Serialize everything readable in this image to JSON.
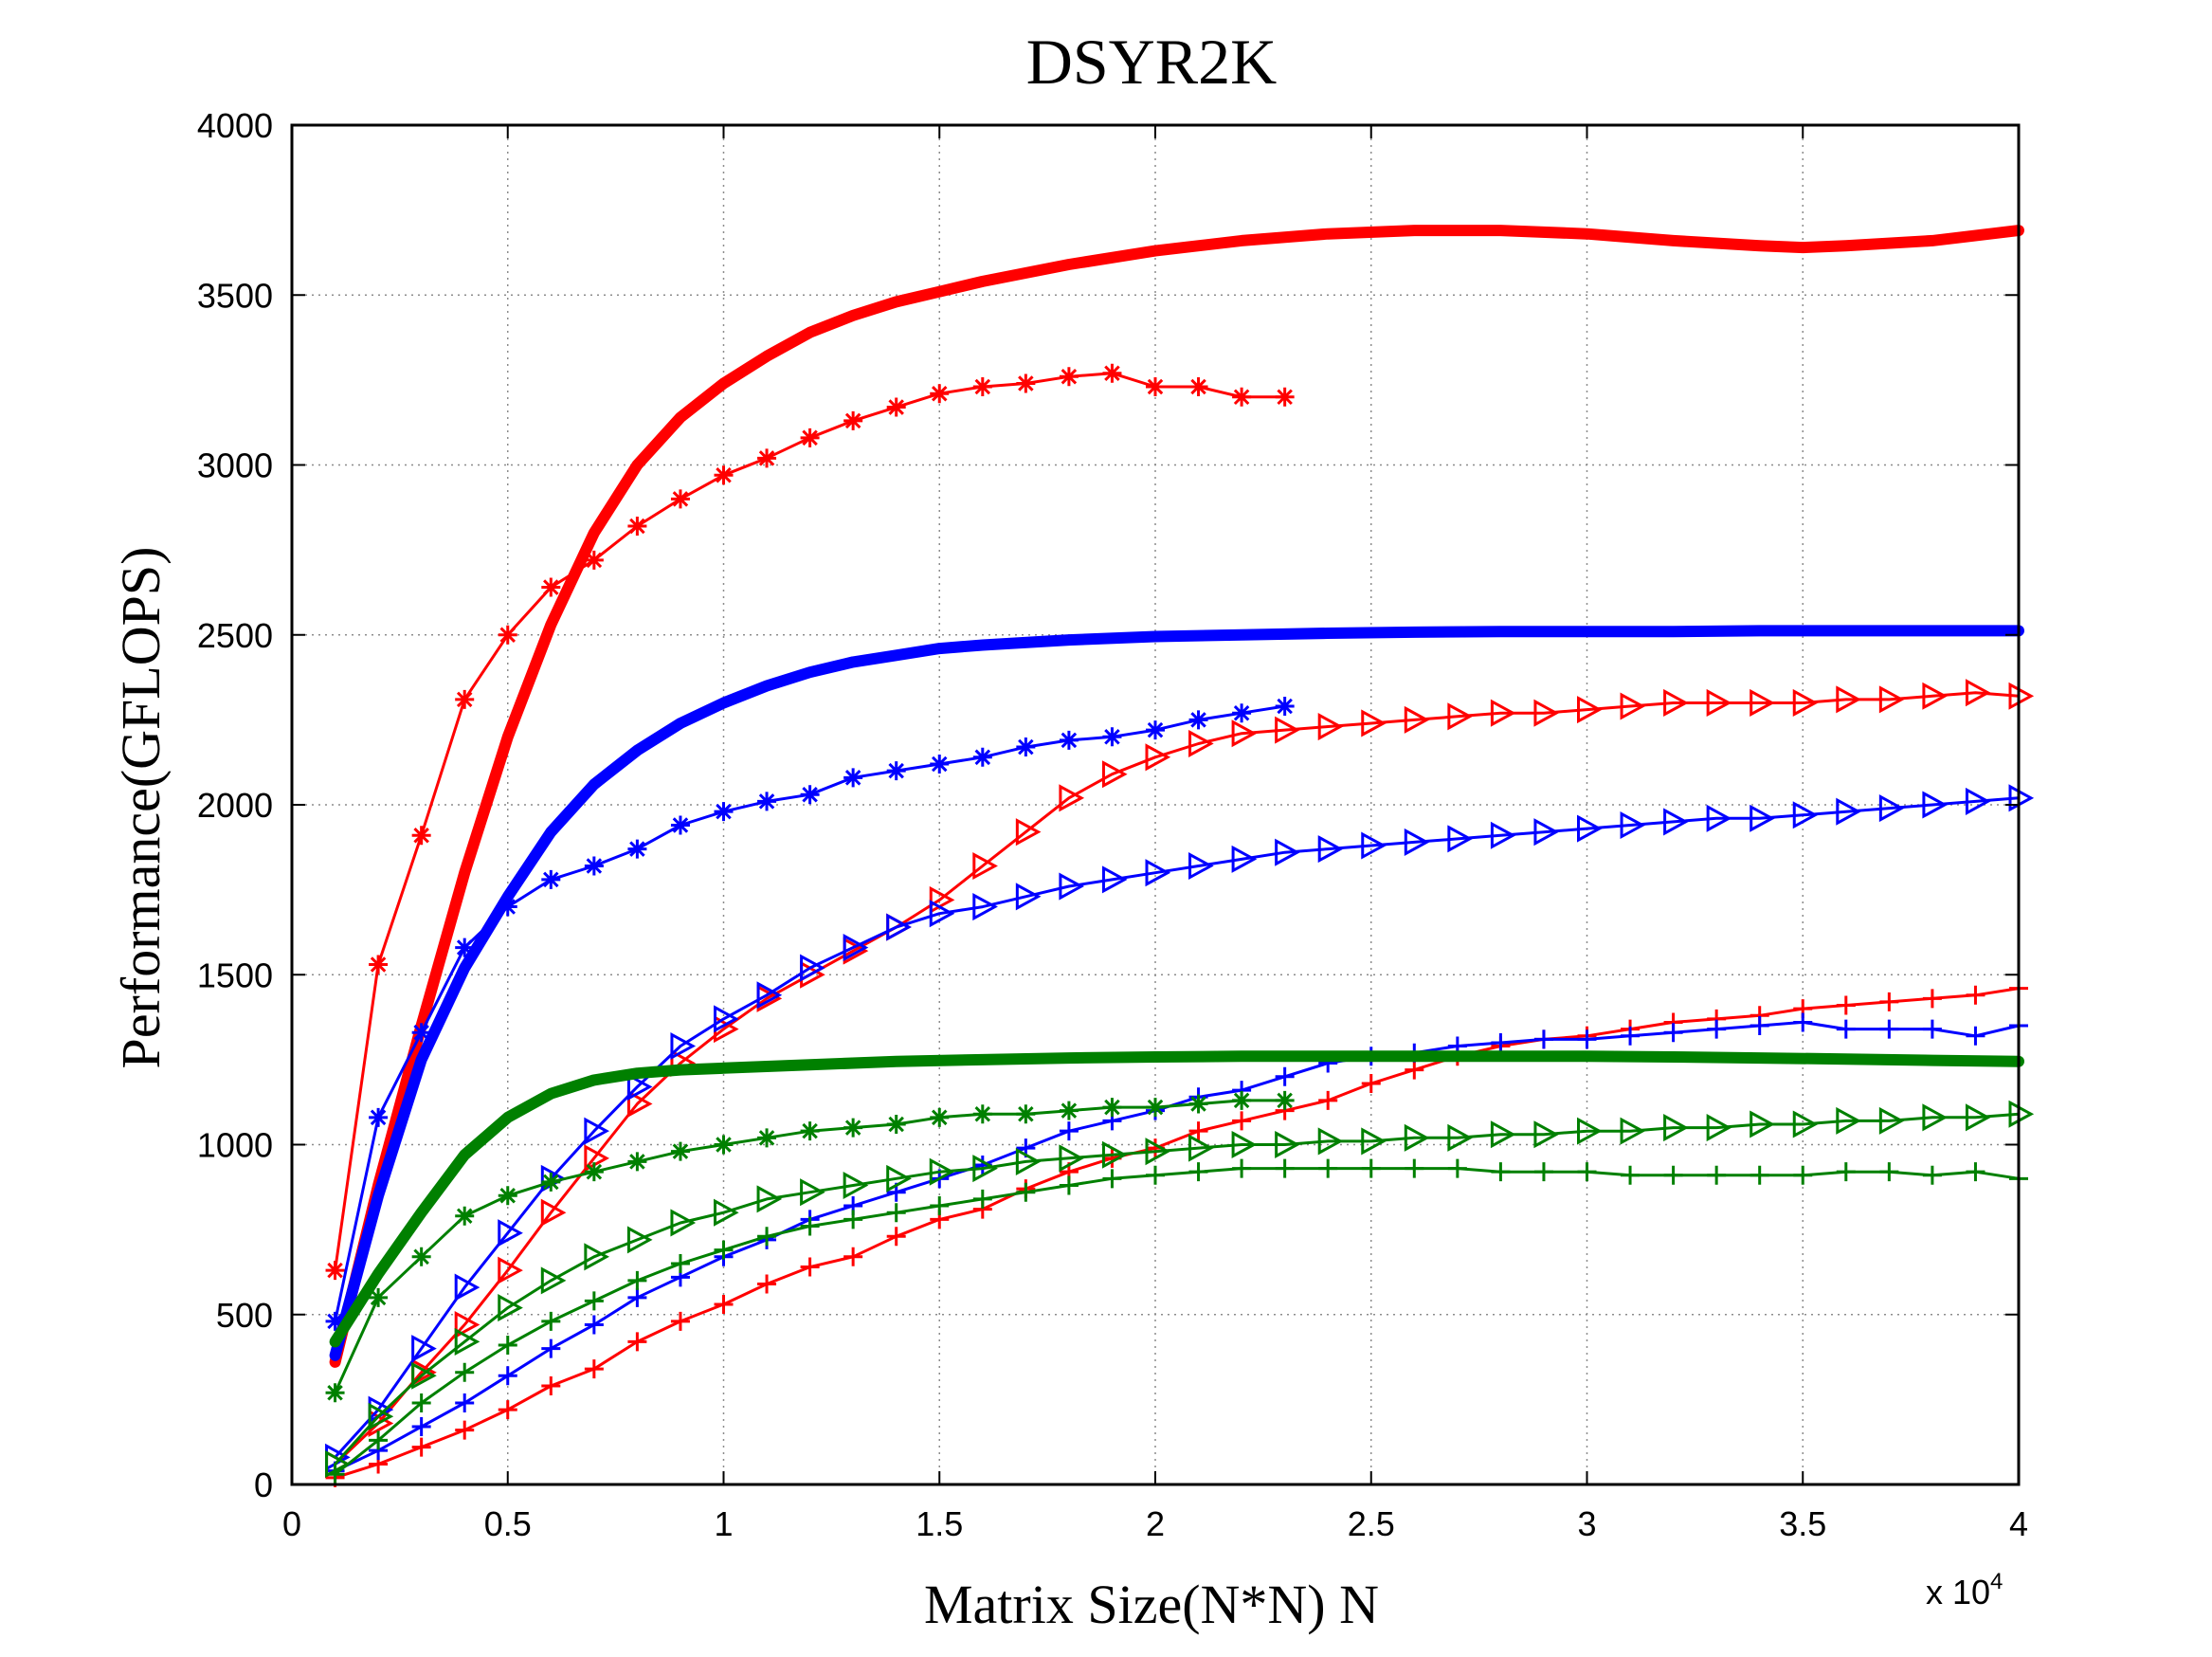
{
  "chart_data": {
    "type": "line",
    "title": "DSYR2K",
    "xlabel": "Matrix Size(N*N) N",
    "ylabel": "Performance(GFLOPS)",
    "x_multiplier_label": "x 10",
    "x_multiplier_exponent": "4",
    "xlim": [
      0,
      4
    ],
    "ylim": [
      0,
      4000
    ],
    "xticks": [
      0,
      0.5,
      1,
      1.5,
      2,
      2.5,
      3,
      3.5,
      4
    ],
    "xtick_labels": [
      "0",
      "0.5",
      "1",
      "1.5",
      "2",
      "2.5",
      "3",
      "3.5",
      "4"
    ],
    "yticks": [
      0,
      500,
      1000,
      1500,
      2000,
      2500,
      3000,
      3500,
      4000
    ],
    "ytick_labels": [
      "0",
      "500",
      "1000",
      "1500",
      "2000",
      "2500",
      "3000",
      "3500",
      "4000"
    ],
    "grid": true,
    "colors": {
      "red": "#ff0000",
      "blue": "#0000ff",
      "green": "#008000",
      "axis": "#000000",
      "grid": "#8c8c8c"
    },
    "series": [
      {
        "name": "red-thick",
        "color": "red",
        "marker": "none",
        "width": "thick",
        "x": [
          0.1,
          0.2,
          0.3,
          0.4,
          0.5,
          0.6,
          0.7,
          0.8,
          0.9,
          1.0,
          1.1,
          1.2,
          1.3,
          1.4,
          1.5,
          1.6,
          1.8,
          2.0,
          2.2,
          2.4,
          2.6,
          2.8,
          3.0,
          3.2,
          3.4,
          3.5,
          3.6,
          3.8,
          4.0
        ],
        "y": [
          360,
          880,
          1350,
          1800,
          2200,
          2530,
          2800,
          3000,
          3140,
          3240,
          3320,
          3390,
          3440,
          3480,
          3510,
          3540,
          3590,
          3630,
          3660,
          3680,
          3690,
          3690,
          3680,
          3660,
          3645,
          3640,
          3645,
          3660,
          3690
        ]
      },
      {
        "name": "red-star",
        "color": "red",
        "marker": "star",
        "width": "thin",
        "x": [
          0.1,
          0.2,
          0.3,
          0.4,
          0.5,
          0.6,
          0.7,
          0.8,
          0.9,
          1.0,
          1.1,
          1.2,
          1.3,
          1.4,
          1.5,
          1.6,
          1.7,
          1.8,
          1.9,
          2.0,
          2.1,
          2.2,
          2.3
        ],
        "y": [
          630,
          1530,
          1910,
          2310,
          2500,
          2640,
          2720,
          2820,
          2900,
          2970,
          3020,
          3080,
          3130,
          3170,
          3210,
          3230,
          3240,
          3260,
          3270,
          3230,
          3230,
          3200,
          3200
        ]
      },
      {
        "name": "red-triangle",
        "color": "red",
        "marker": "triangle",
        "width": "thin",
        "x": [
          0.1,
          0.2,
          0.3,
          0.4,
          0.5,
          0.6,
          0.7,
          0.8,
          0.9,
          1.0,
          1.1,
          1.2,
          1.3,
          1.4,
          1.5,
          1.6,
          1.7,
          1.8,
          1.9,
          2.0,
          2.1,
          2.2,
          2.3,
          2.4,
          2.5,
          2.6,
          2.7,
          2.8,
          2.9,
          3.0,
          3.1,
          3.2,
          3.3,
          3.4,
          3.5,
          3.6,
          3.7,
          3.8,
          3.9,
          4.0
        ],
        "y": [
          60,
          180,
          330,
          470,
          630,
          800,
          960,
          1120,
          1240,
          1340,
          1430,
          1500,
          1570,
          1640,
          1720,
          1820,
          1920,
          2020,
          2090,
          2140,
          2180,
          2210,
          2220,
          2230,
          2240,
          2250,
          2260,
          2270,
          2270,
          2280,
          2290,
          2300,
          2300,
          2300,
          2300,
          2310,
          2310,
          2320,
          2330,
          2320
        ]
      },
      {
        "name": "red-plus",
        "color": "red",
        "marker": "plus",
        "width": "thin",
        "x": [
          0.1,
          0.2,
          0.3,
          0.4,
          0.5,
          0.6,
          0.7,
          0.8,
          0.9,
          1.0,
          1.1,
          1.2,
          1.3,
          1.4,
          1.5,
          1.6,
          1.7,
          1.8,
          1.9,
          2.0,
          2.1,
          2.2,
          2.3,
          2.4,
          2.5,
          2.6,
          2.7,
          2.8,
          2.9,
          3.0,
          3.1,
          3.2,
          3.3,
          3.4,
          3.5,
          3.6,
          3.7,
          3.8,
          3.9,
          4.0
        ],
        "y": [
          20,
          60,
          110,
          160,
          220,
          290,
          340,
          420,
          480,
          530,
          590,
          640,
          670,
          730,
          780,
          810,
          870,
          920,
          960,
          990,
          1040,
          1070,
          1100,
          1130,
          1180,
          1220,
          1260,
          1290,
          1310,
          1320,
          1340,
          1360,
          1370,
          1380,
          1400,
          1410,
          1420,
          1430,
          1440,
          1460
        ]
      },
      {
        "name": "blue-thick",
        "color": "blue",
        "marker": "none",
        "width": "thick",
        "x": [
          0.1,
          0.2,
          0.3,
          0.4,
          0.5,
          0.6,
          0.7,
          0.8,
          0.9,
          1.0,
          1.1,
          1.2,
          1.3,
          1.4,
          1.5,
          1.6,
          1.8,
          2.0,
          2.2,
          2.4,
          2.6,
          2.8,
          3.0,
          3.2,
          3.4,
          3.6,
          3.8,
          4.0
        ],
        "y": [
          380,
          850,
          1250,
          1520,
          1730,
          1920,
          2060,
          2160,
          2240,
          2300,
          2350,
          2390,
          2420,
          2440,
          2460,
          2470,
          2485,
          2495,
          2500,
          2505,
          2508,
          2510,
          2510,
          2510,
          2512,
          2512,
          2512,
          2512
        ]
      },
      {
        "name": "blue-star",
        "color": "blue",
        "marker": "star",
        "width": "thin",
        "x": [
          0.1,
          0.2,
          0.3,
          0.4,
          0.5,
          0.6,
          0.7,
          0.8,
          0.9,
          1.0,
          1.1,
          1.2,
          1.3,
          1.4,
          1.5,
          1.6,
          1.7,
          1.8,
          1.9,
          2.0,
          2.1,
          2.2,
          2.3
        ],
        "y": [
          480,
          1080,
          1330,
          1580,
          1700,
          1780,
          1820,
          1870,
          1940,
          1980,
          2010,
          2030,
          2080,
          2100,
          2120,
          2140,
          2170,
          2190,
          2200,
          2220,
          2250,
          2270,
          2290
        ]
      },
      {
        "name": "blue-triangle",
        "color": "blue",
        "marker": "triangle",
        "width": "thin",
        "x": [
          0.1,
          0.2,
          0.3,
          0.4,
          0.5,
          0.6,
          0.7,
          0.8,
          0.9,
          1.0,
          1.1,
          1.2,
          1.3,
          1.4,
          1.5,
          1.6,
          1.7,
          1.8,
          1.9,
          2.0,
          2.1,
          2.2,
          2.3,
          2.4,
          2.5,
          2.6,
          2.7,
          2.8,
          2.9,
          3.0,
          3.1,
          3.2,
          3.3,
          3.4,
          3.5,
          3.6,
          3.7,
          3.8,
          3.9,
          4.0
        ],
        "y": [
          80,
          220,
          400,
          580,
          740,
          900,
          1040,
          1170,
          1290,
          1370,
          1440,
          1520,
          1580,
          1640,
          1680,
          1700,
          1730,
          1760,
          1780,
          1800,
          1820,
          1840,
          1860,
          1870,
          1880,
          1890,
          1900,
          1910,
          1920,
          1930,
          1940,
          1950,
          1960,
          1960,
          1970,
          1980,
          1990,
          2000,
          2010,
          2020
        ]
      },
      {
        "name": "blue-plus",
        "color": "blue",
        "marker": "plus",
        "width": "thin",
        "x": [
          0.1,
          0.2,
          0.3,
          0.4,
          0.5,
          0.6,
          0.7,
          0.8,
          0.9,
          1.0,
          1.1,
          1.2,
          1.3,
          1.4,
          1.5,
          1.6,
          1.7,
          1.8,
          1.9,
          2.0,
          2.1,
          2.2,
          2.3,
          2.4,
          2.5,
          2.6,
          2.7,
          2.8,
          2.9,
          3.0,
          3.1,
          3.2,
          3.3,
          3.4,
          3.5,
          3.6,
          3.7,
          3.8,
          3.9,
          4.0
        ],
        "y": [
          40,
          100,
          170,
          240,
          320,
          400,
          470,
          550,
          610,
          670,
          720,
          780,
          820,
          860,
          900,
          940,
          990,
          1040,
          1070,
          1100,
          1140,
          1160,
          1200,
          1240,
          1260,
          1270,
          1290,
          1300,
          1310,
          1310,
          1320,
          1330,
          1340,
          1350,
          1360,
          1340,
          1340,
          1340,
          1320,
          1350
        ]
      },
      {
        "name": "green-thick",
        "color": "green",
        "marker": "none",
        "width": "thick",
        "x": [
          0.1,
          0.2,
          0.3,
          0.4,
          0.5,
          0.6,
          0.7,
          0.8,
          0.9,
          1.0,
          1.2,
          1.4,
          1.6,
          1.8,
          2.0,
          2.2,
          2.4,
          2.6,
          2.8,
          3.0,
          3.2,
          3.4,
          3.6,
          3.8,
          4.0
        ],
        "y": [
          420,
          620,
          800,
          970,
          1080,
          1150,
          1190,
          1210,
          1220,
          1225,
          1235,
          1245,
          1250,
          1255,
          1258,
          1260,
          1260,
          1260,
          1260,
          1260,
          1258,
          1255,
          1252,
          1248,
          1245
        ]
      },
      {
        "name": "green-star",
        "color": "green",
        "marker": "star",
        "width": "thin",
        "x": [
          0.1,
          0.2,
          0.3,
          0.4,
          0.5,
          0.6,
          0.7,
          0.8,
          0.9,
          1.0,
          1.1,
          1.2,
          1.3,
          1.4,
          1.5,
          1.6,
          1.7,
          1.8,
          1.9,
          2.0,
          2.1,
          2.2,
          2.3
        ],
        "y": [
          270,
          550,
          670,
          790,
          850,
          890,
          920,
          950,
          980,
          1000,
          1020,
          1040,
          1050,
          1060,
          1080,
          1090,
          1090,
          1100,
          1110,
          1110,
          1120,
          1130,
          1130
        ]
      },
      {
        "name": "green-triangle",
        "color": "green",
        "marker": "triangle",
        "width": "thin",
        "x": [
          0.1,
          0.2,
          0.3,
          0.4,
          0.5,
          0.6,
          0.7,
          0.8,
          0.9,
          1.0,
          1.1,
          1.2,
          1.3,
          1.4,
          1.5,
          1.6,
          1.7,
          1.8,
          1.9,
          2.0,
          2.1,
          2.2,
          2.3,
          2.4,
          2.5,
          2.6,
          2.7,
          2.8,
          2.9,
          3.0,
          3.1,
          3.2,
          3.3,
          3.4,
          3.5,
          3.6,
          3.7,
          3.8,
          3.9,
          4.0
        ],
        "y": [
          60,
          200,
          320,
          420,
          520,
          600,
          670,
          720,
          770,
          800,
          840,
          860,
          880,
          900,
          920,
          930,
          950,
          960,
          970,
          980,
          990,
          1000,
          1000,
          1010,
          1010,
          1020,
          1020,
          1030,
          1030,
          1040,
          1040,
          1050,
          1050,
          1060,
          1060,
          1070,
          1070,
          1080,
          1080,
          1090
        ]
      },
      {
        "name": "green-plus",
        "color": "green",
        "marker": "plus",
        "width": "thin",
        "x": [
          0.1,
          0.2,
          0.3,
          0.4,
          0.5,
          0.6,
          0.7,
          0.8,
          0.9,
          1.0,
          1.1,
          1.2,
          1.3,
          1.4,
          1.5,
          1.6,
          1.7,
          1.8,
          1.9,
          2.0,
          2.1,
          2.2,
          2.3,
          2.4,
          2.5,
          2.6,
          2.7,
          2.8,
          2.9,
          3.0,
          3.1,
          3.2,
          3.3,
          3.4,
          3.5,
          3.6,
          3.7,
          3.8,
          3.9,
          4.0
        ],
        "y": [
          30,
          130,
          240,
          330,
          410,
          480,
          540,
          600,
          650,
          690,
          730,
          760,
          780,
          800,
          820,
          840,
          860,
          880,
          900,
          910,
          920,
          930,
          930,
          930,
          930,
          930,
          930,
          920,
          920,
          920,
          910,
          910,
          910,
          910,
          910,
          920,
          920,
          910,
          920,
          900
        ]
      }
    ]
  }
}
